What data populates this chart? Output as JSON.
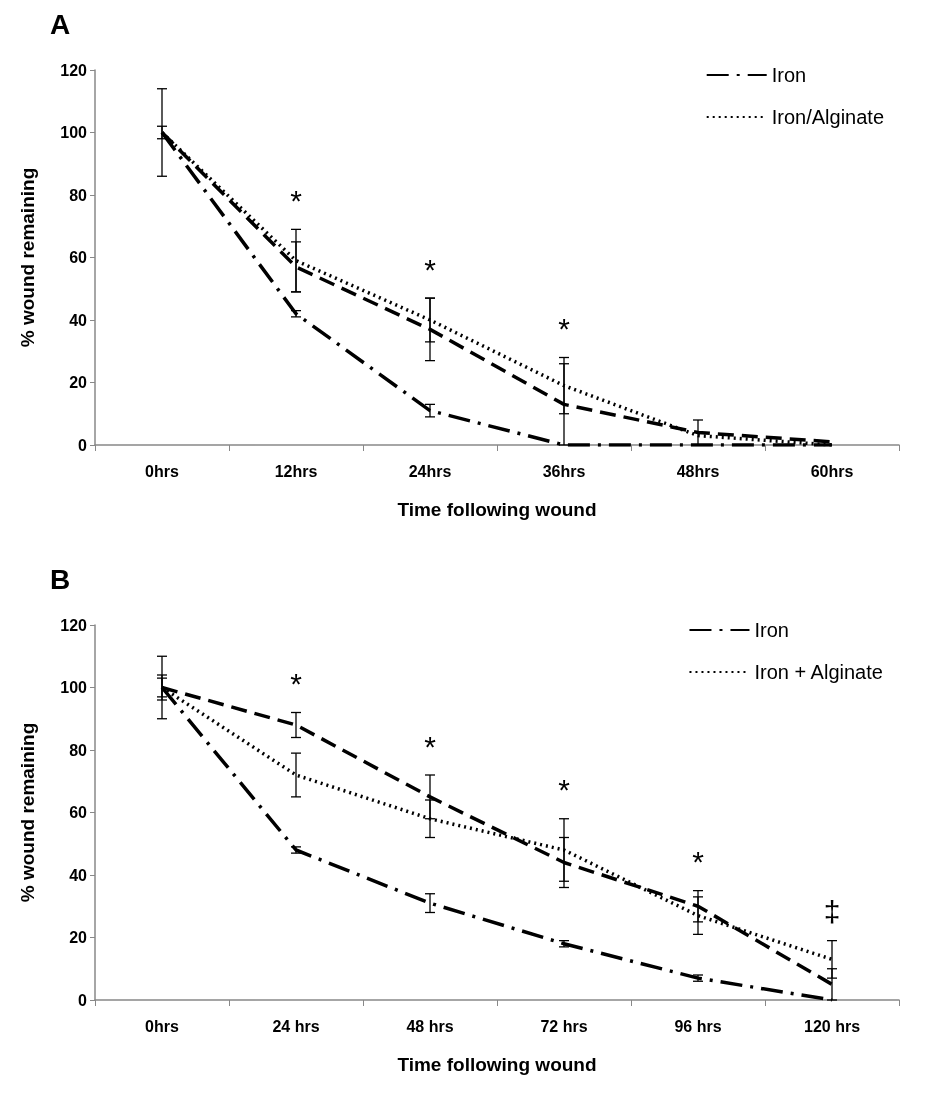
{
  "chart_data": [
    {
      "type": "line",
      "title": "A",
      "xlabel": "Time following wound",
      "ylabel": "% wound remaining",
      "categories": [
        "0hrs",
        "12hrs",
        "24hrs",
        "36hrs",
        "48hrs",
        "60hrs"
      ],
      "series": [
        {
          "name": "Iron",
          "color": "#000000",
          "line_style": "dashdot",
          "values": [
            100,
            42,
            11,
            0,
            0,
            0
          ],
          "errors": [
            14,
            1,
            2,
            null,
            null,
            null
          ]
        },
        {
          "color": "#000000",
          "line_style": "dashed",
          "values": [
            100,
            57,
            37,
            13,
            4,
            1
          ],
          "errors": [
            2,
            8,
            10,
            13,
            4,
            null
          ]
        },
        {
          "name": "Iron/Alginate",
          "color": "#000000",
          "line_style": "dotted",
          "values": [
            100,
            59,
            40,
            19,
            3,
            0
          ],
          "errors": [
            null,
            10,
            7,
            9,
            null,
            null
          ]
        }
      ],
      "ylim": [
        0,
        120
      ],
      "yticks": [
        0,
        20,
        40,
        60,
        80,
        100,
        120
      ],
      "grid": false,
      "legend": "top right",
      "marker": "none",
      "annotations": [
        "*",
        "*",
        "*"
      ]
    },
    {
      "type": "line",
      "title": "B",
      "xlabel": "Time following wound",
      "ylabel": "% wound remaining",
      "categories": [
        "0hrs",
        "24 hrs",
        "48 hrs",
        "72 hrs",
        "96 hrs",
        "120 hrs"
      ],
      "series": [
        {
          "name": "Iron",
          "color": "#000000",
          "line_style": "dashdot",
          "values": [
            100,
            48,
            31,
            18,
            7,
            0
          ],
          "errors": [
            3,
            1,
            3,
            1,
            1,
            null
          ]
        },
        {
          "name": "Iron + Alginate",
          "color": "#000000",
          "line_style": "dotted",
          "values": [
            100,
            72,
            58,
            48,
            27,
            13
          ],
          "errors": [
            10,
            7,
            6,
            10,
            6,
            6
          ]
        },
        {
          "color": "#000000",
          "line_style": "dashed",
          "values": [
            100,
            88,
            65,
            44,
            30,
            5
          ],
          "errors": [
            4,
            4,
            7,
            8,
            5,
            5
          ]
        }
      ],
      "ylim": [
        0,
        120
      ],
      "yticks": [
        0,
        20,
        40,
        60,
        80,
        100,
        120
      ],
      "grid": false,
      "legend": "top right",
      "marker": "none",
      "annotations": [
        "*",
        "*",
        "*",
        "*",
        "‡"
      ]
    }
  ]
}
